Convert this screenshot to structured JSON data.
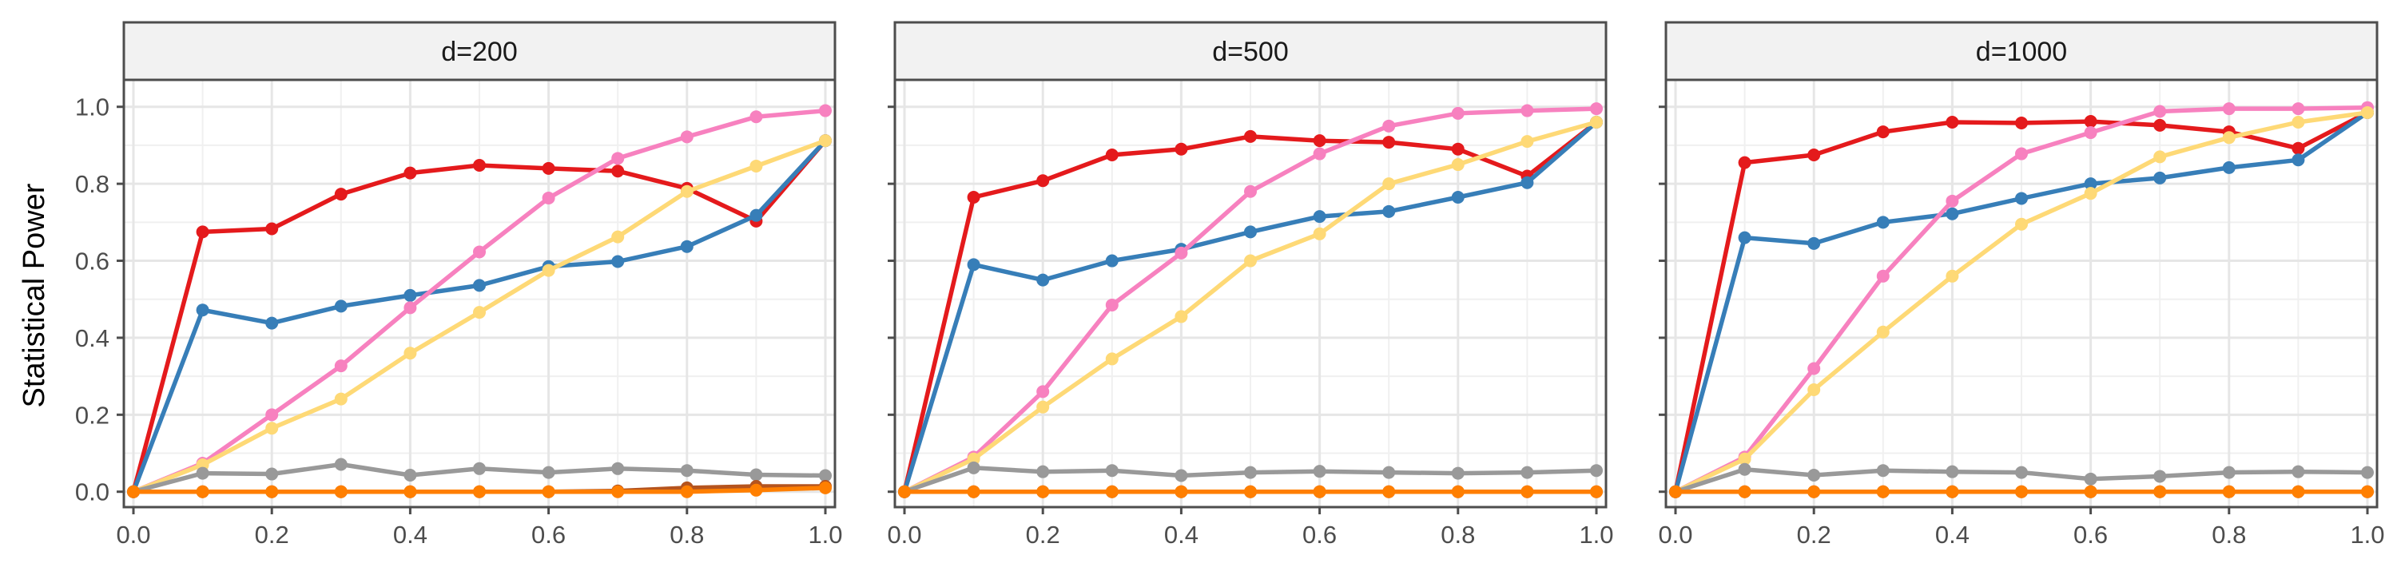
{
  "chart_data": {
    "type": "line",
    "ylabel": "Statistical Power",
    "xlabel": "",
    "xlim": [
      0,
      1
    ],
    "ylim": [
      -0.04,
      1.07
    ],
    "x_ticks": [
      "0.0",
      "0.2",
      "0.4",
      "0.6",
      "0.8",
      "1.0"
    ],
    "y_ticks": [
      "0.0",
      "0.2",
      "0.4",
      "0.6",
      "0.8",
      "1.0"
    ],
    "grid": true,
    "legend": "none",
    "x": [
      0,
      0.1,
      0.2,
      0.3,
      0.4,
      0.5,
      0.6,
      0.7,
      0.8,
      0.9,
      1.0
    ],
    "series_colors": [
      "#E41A1C",
      "#377EB8",
      "#F781BF",
      "#FED976",
      "#999999",
      "#B5541E",
      "#FF7F00"
    ],
    "panels": [
      {
        "title": "d=200",
        "series": [
          {
            "values": [
              0.0,
              0.675,
              0.683,
              0.773,
              0.828,
              0.848,
              0.84,
              0.833,
              0.788,
              0.703,
              0.912
            ]
          },
          {
            "values": [
              0.0,
              0.472,
              0.438,
              0.482,
              0.51,
              0.536,
              0.585,
              0.598,
              0.637,
              0.718,
              0.912
            ]
          },
          {
            "values": [
              0.0,
              0.074,
              0.2,
              0.327,
              0.478,
              0.623,
              0.763,
              0.866,
              0.922,
              0.974,
              0.99
            ]
          },
          {
            "values": [
              0.0,
              0.07,
              0.165,
              0.241,
              0.36,
              0.466,
              0.575,
              0.662,
              0.78,
              0.846,
              0.912
            ]
          },
          {
            "values": [
              0.0,
              0.048,
              0.046,
              0.071,
              0.043,
              0.06,
              0.05,
              0.06,
              0.055,
              0.044,
              0.042
            ]
          },
          {
            "values": [
              0.0,
              0.0,
              0.0,
              0.0,
              0.0,
              0.0,
              0.0,
              0.002,
              0.01,
              0.014,
              0.014
            ]
          },
          {
            "values": [
              0.0,
              0.0,
              0.0,
              0.0,
              0.0,
              0.0,
              0.0,
              0.0,
              0.0,
              0.004,
              0.01
            ]
          }
        ]
      },
      {
        "title": "d=500",
        "series": [
          {
            "values": [
              0.0,
              0.765,
              0.808,
              0.875,
              0.89,
              0.923,
              0.912,
              0.908,
              0.89,
              0.82,
              0.96
            ]
          },
          {
            "values": [
              0.0,
              0.59,
              0.55,
              0.6,
              0.63,
              0.675,
              0.715,
              0.728,
              0.765,
              0.803,
              0.96
            ]
          },
          {
            "values": [
              0.0,
              0.09,
              0.26,
              0.485,
              0.62,
              0.78,
              0.878,
              0.95,
              0.983,
              0.99,
              0.995
            ]
          },
          {
            "values": [
              0.0,
              0.085,
              0.22,
              0.345,
              0.455,
              0.6,
              0.67,
              0.8,
              0.85,
              0.91,
              0.96
            ]
          },
          {
            "values": [
              0.0,
              0.062,
              0.052,
              0.055,
              0.042,
              0.05,
              0.053,
              0.05,
              0.048,
              0.05,
              0.055
            ]
          },
          {
            "values": [
              0.0,
              0.0,
              0.0,
              0.0,
              0.0,
              0.0,
              0.0,
              0.0,
              0.0,
              0.0,
              0.0
            ]
          },
          {
            "values": [
              0.0,
              0.0,
              0.0,
              0.0,
              0.0,
              0.0,
              0.0,
              0.0,
              0.0,
              0.0,
              0.0
            ]
          }
        ]
      },
      {
        "title": "d=1000",
        "series": [
          {
            "values": [
              0.0,
              0.855,
              0.875,
              0.935,
              0.96,
              0.958,
              0.962,
              0.952,
              0.935,
              0.892,
              0.985
            ]
          },
          {
            "values": [
              0.0,
              0.66,
              0.645,
              0.7,
              0.722,
              0.762,
              0.8,
              0.815,
              0.842,
              0.862,
              0.985
            ]
          },
          {
            "values": [
              0.0,
              0.09,
              0.32,
              0.56,
              0.755,
              0.878,
              0.933,
              0.988,
              0.995,
              0.995,
              0.998
            ]
          },
          {
            "values": [
              0.0,
              0.085,
              0.265,
              0.415,
              0.56,
              0.695,
              0.775,
              0.87,
              0.92,
              0.96,
              0.985
            ]
          },
          {
            "values": [
              0.0,
              0.058,
              0.043,
              0.055,
              0.052,
              0.05,
              0.033,
              0.04,
              0.05,
              0.052,
              0.05
            ]
          },
          {
            "values": [
              0.0,
              0.0,
              0.0,
              0.0,
              0.0,
              0.0,
              0.0,
              0.0,
              0.0,
              0.0,
              0.0
            ]
          },
          {
            "values": [
              0.0,
              0.0,
              0.0,
              0.0,
              0.0,
              0.0,
              0.0,
              0.0,
              0.0,
              0.0,
              0.0
            ]
          }
        ]
      }
    ]
  }
}
